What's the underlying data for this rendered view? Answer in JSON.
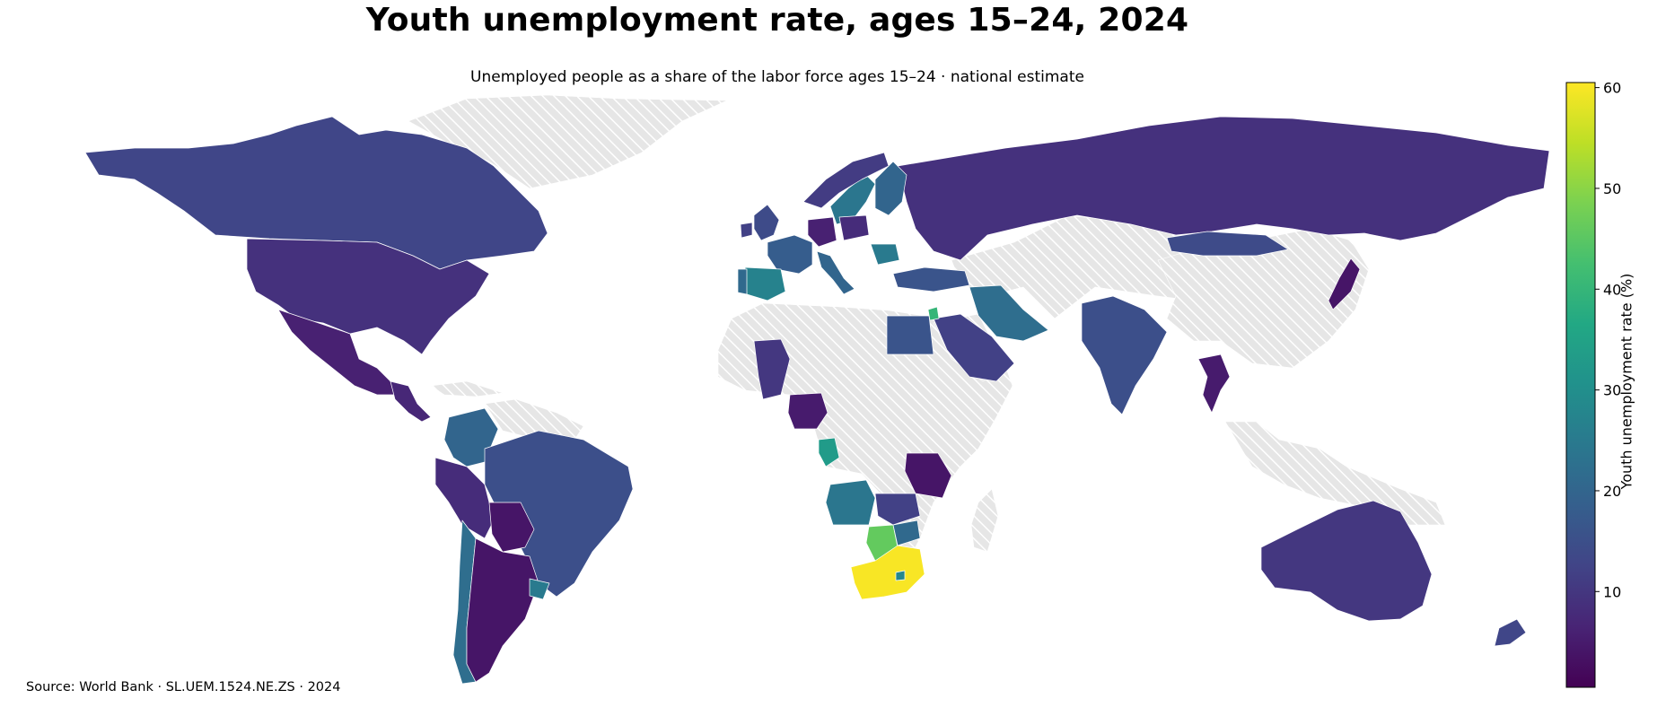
{
  "title": "Youth unemployment rate, ages 15–24, 2024",
  "subtitle": "Unemployed people as a share of the labor force ages 15–24 · national estimate",
  "source": "Source: World Bank · SL.UEM.1524.NE.ZS · 2024",
  "colorbar": {
    "label": "Youth unemployment rate (%)",
    "colormap": "viridis",
    "min": 0.5,
    "max": 60.5,
    "ticks": [
      "10",
      "20",
      "30",
      "40",
      "50",
      "60"
    ]
  },
  "colors": {
    "no_data_fill": "#e6e6e6",
    "no_data_hatch": "#ffffff",
    "border": "#ffffff",
    "background": "#ffffff"
  },
  "chart_data": {
    "type": "choropleth",
    "metric": "Youth unemployment rate, ages 15–24 (%)",
    "year": 2024,
    "regions": [
      {
        "name": "Canada",
        "value": 13
      },
      {
        "name": "United States",
        "value": 9
      },
      {
        "name": "Mexico",
        "value": 6
      },
      {
        "name": "Central America",
        "value": 7
      },
      {
        "name": "Colombia",
        "value": 20
      },
      {
        "name": "Peru",
        "value": 8
      },
      {
        "name": "Brazil",
        "value": 15
      },
      {
        "name": "Bolivia",
        "value": 4
      },
      {
        "name": "Chile",
        "value": 22
      },
      {
        "name": "Argentina",
        "value": 4
      },
      {
        "name": "Uruguay",
        "value": 25
      },
      {
        "name": "Russia",
        "value": 9
      },
      {
        "name": "Sweden",
        "value": 24
      },
      {
        "name": "Finland",
        "value": 20
      },
      {
        "name": "Norway",
        "value": 11
      },
      {
        "name": "United Kingdom",
        "value": 14
      },
      {
        "name": "Ireland",
        "value": 12
      },
      {
        "name": "France",
        "value": 18
      },
      {
        "name": "Spain",
        "value": 27
      },
      {
        "name": "Portugal",
        "value": 21
      },
      {
        "name": "Germany",
        "value": 6
      },
      {
        "name": "Poland",
        "value": 8
      },
      {
        "name": "Italy",
        "value": 20
      },
      {
        "name": "Romania",
        "value": 25
      },
      {
        "name": "Turkey",
        "value": 16
      },
      {
        "name": "Iran",
        "value": 22
      },
      {
        "name": "Egypt",
        "value": 16
      },
      {
        "name": "Saudi Arabia",
        "value": 12
      },
      {
        "name": "Jordan",
        "value": 40
      },
      {
        "name": "India",
        "value": 15
      },
      {
        "name": "Mongolia",
        "value": 14
      },
      {
        "name": "Japan",
        "value": 4
      },
      {
        "name": "Thailand",
        "value": 5
      },
      {
        "name": "Mali",
        "value": 10
      },
      {
        "name": "Nigeria",
        "value": 5
      },
      {
        "name": "Gabon",
        "value": 33
      },
      {
        "name": "Angola",
        "value": 24
      },
      {
        "name": "Tanzania",
        "value": 4
      },
      {
        "name": "Zambia",
        "value": 12
      },
      {
        "name": "Botswana",
        "value": 46
      },
      {
        "name": "Zimbabwe",
        "value": 21
      },
      {
        "name": "South Africa",
        "value": 60
      },
      {
        "name": "Lesotho",
        "value": 28
      },
      {
        "name": "Australia",
        "value": 10
      },
      {
        "name": "New Zealand",
        "value": 13
      }
    ]
  }
}
